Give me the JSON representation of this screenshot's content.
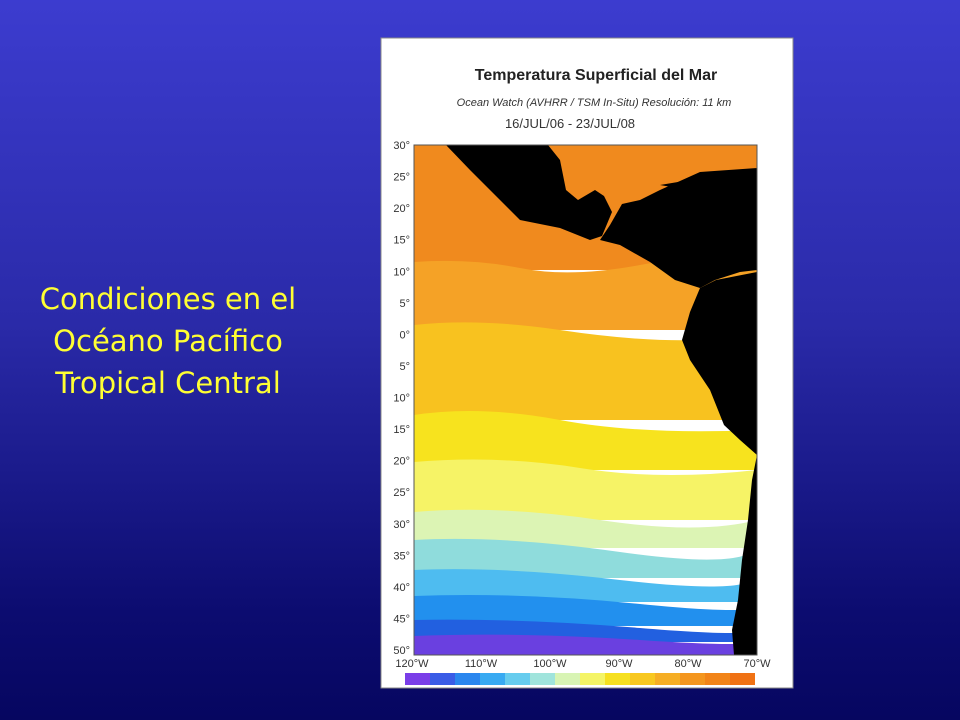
{
  "slide": {
    "title_lines": [
      "Condiciones en el",
      "Océano Pacífico",
      "Tropical Central"
    ]
  },
  "map": {
    "title": "Temperatura Superficial del Mar",
    "subtitle": "Ocean Watch (AVHRR / TSM In-Situ) Resolución: 11 km",
    "date": "16/JUL/06 - 23/JUL/08",
    "lat_labels": [
      "30°",
      "25°",
      "20°",
      "15°",
      "10°",
      "5°",
      "0°",
      "5°",
      "10°",
      "15°",
      "20°",
      "25°",
      "30°",
      "35°",
      "40°",
      "45°",
      "50°"
    ],
    "lon_labels": [
      "120°W",
      "110°W",
      "100°W",
      "90°W",
      "80°W",
      "70°W"
    ]
  }
}
